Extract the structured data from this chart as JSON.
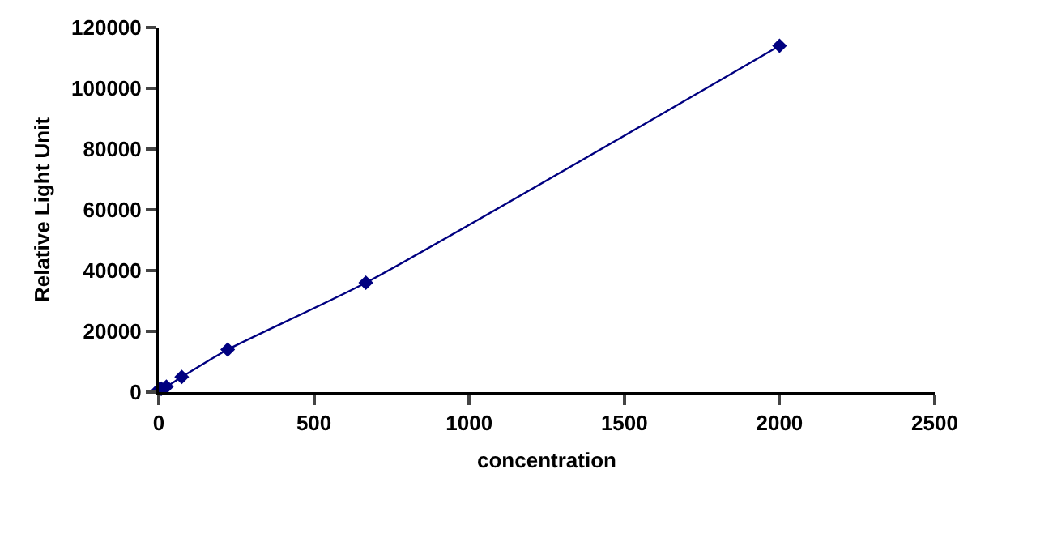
{
  "chart_data": {
    "type": "line",
    "xlabel": "concentration",
    "ylabel": "Relative Light Unit",
    "x": [
      0,
      2.7,
      8.2,
      24.7,
      74,
      222,
      667,
      2000
    ],
    "series": [
      {
        "color": "#000080",
        "values": [
          800,
          900,
          1100,
          1800,
          5000,
          14000,
          36000,
          114000
        ]
      }
    ],
    "xlim": [
      0,
      2500
    ],
    "xticks": [
      0,
      500,
      1000,
      1500,
      2000,
      2500
    ],
    "ylim": [
      0,
      120000
    ],
    "yticks": [
      0,
      20000,
      40000,
      60000,
      80000,
      100000,
      120000
    ],
    "grid": false,
    "marker": "diamond",
    "line_style": "solid"
  }
}
